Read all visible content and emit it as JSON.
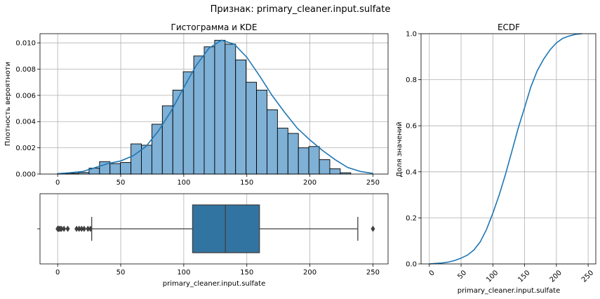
{
  "suptitle": "Признак: primary_cleaner.input.sulfate",
  "chart_data": [
    {
      "type": "bar",
      "title": "Гистограмма и KDE",
      "xlabel": "",
      "ylabel": "Плотность вероятноти",
      "xlim": [
        -14,
        262
      ],
      "ylim": [
        0,
        0.0107
      ],
      "xticks": [
        0,
        50,
        100,
        150,
        200,
        250
      ],
      "xtick_labels": [
        "0",
        "50",
        "100",
        "150",
        "200",
        "250"
      ],
      "yticks": [
        0,
        0.002,
        0.004,
        0.006,
        0.008,
        0.01
      ],
      "ytick_labels": [
        "0.000",
        "0.002",
        "0.004",
        "0.006",
        "0.008",
        "0.010"
      ],
      "grid": true,
      "bar_color": "#7fb0d5",
      "edge_color": "#000000",
      "bin_width": 8.3,
      "bin_edges_start": 0,
      "values": [
        5e-05,
        6e-05,
        0.00012,
        0.00045,
        0.00095,
        0.0008,
        0.00088,
        0.0023,
        0.0022,
        0.0038,
        0.0052,
        0.0064,
        0.0078,
        0.009,
        0.0097,
        0.0102,
        0.0099,
        0.0087,
        0.007,
        0.0064,
        0.0049,
        0.0035,
        0.0031,
        0.002,
        0.0021,
        0.0011,
        0.0004,
        0.0001
      ],
      "kde": {
        "color": "#1f77b4",
        "x": [
          0,
          10,
          20,
          30,
          40,
          50,
          60,
          70,
          80,
          90,
          100,
          110,
          120,
          130,
          140,
          150,
          160,
          170,
          180,
          190,
          200,
          210,
          220,
          230,
          240,
          250
        ],
        "y": [
          3e-05,
          0.0001,
          0.0002,
          0.0005,
          0.0008,
          0.001,
          0.0014,
          0.0021,
          0.0033,
          0.0048,
          0.0066,
          0.0083,
          0.0096,
          0.0102,
          0.0099,
          0.0089,
          0.0075,
          0.006,
          0.0047,
          0.0035,
          0.0026,
          0.0018,
          0.0011,
          0.0005,
          0.0002,
          5e-05
        ]
      }
    },
    {
      "type": "box",
      "xlabel": "primary_cleaner.input.sulfate",
      "xlim": [
        -14,
        262
      ],
      "xticks": [
        0,
        50,
        100,
        150,
        200,
        250
      ],
      "xtick_labels": [
        "0",
        "50",
        "100",
        "150",
        "200",
        "250"
      ],
      "grid": true,
      "color": "#3274a1",
      "whisker_low": 27,
      "q1": 107,
      "median": 133,
      "q3": 160,
      "whisker_high": 238,
      "outliers": [
        0,
        0.5,
        1,
        2,
        3,
        5,
        8,
        15,
        17,
        19,
        21,
        24,
        26,
        250
      ]
    },
    {
      "type": "line",
      "title": "ECDF",
      "xlabel": "primary_cleaner.input.sulfate",
      "ylabel": "Доля значений",
      "xlim": [
        -13,
        262
      ],
      "ylim": [
        0,
        1.0
      ],
      "xticks": [
        0,
        50,
        100,
        150,
        200,
        250
      ],
      "xtick_labels": [
        "0",
        "50",
        "100",
        "150",
        "200",
        "250"
      ],
      "xtick_rotation": 45,
      "yticks": [
        0,
        0.2,
        0.4,
        0.6,
        0.8,
        1.0
      ],
      "ytick_labels": [
        "0.0",
        "0.2",
        "0.4",
        "0.6",
        "0.8",
        "1.0"
      ],
      "grid": true,
      "series": [
        {
          "color": "#1f77b4",
          "x": [
            0,
            10,
            20,
            30,
            40,
            50,
            60,
            70,
            80,
            90,
            100,
            110,
            120,
            130,
            140,
            150,
            160,
            170,
            180,
            190,
            200,
            210,
            220,
            230,
            240
          ],
          "values": [
            0.0,
            0.002,
            0.004,
            0.008,
            0.015,
            0.025,
            0.038,
            0.06,
            0.095,
            0.15,
            0.22,
            0.3,
            0.39,
            0.49,
            0.59,
            0.68,
            0.77,
            0.84,
            0.89,
            0.93,
            0.96,
            0.98,
            0.99,
            0.997,
            1.0
          ]
        }
      ]
    }
  ]
}
